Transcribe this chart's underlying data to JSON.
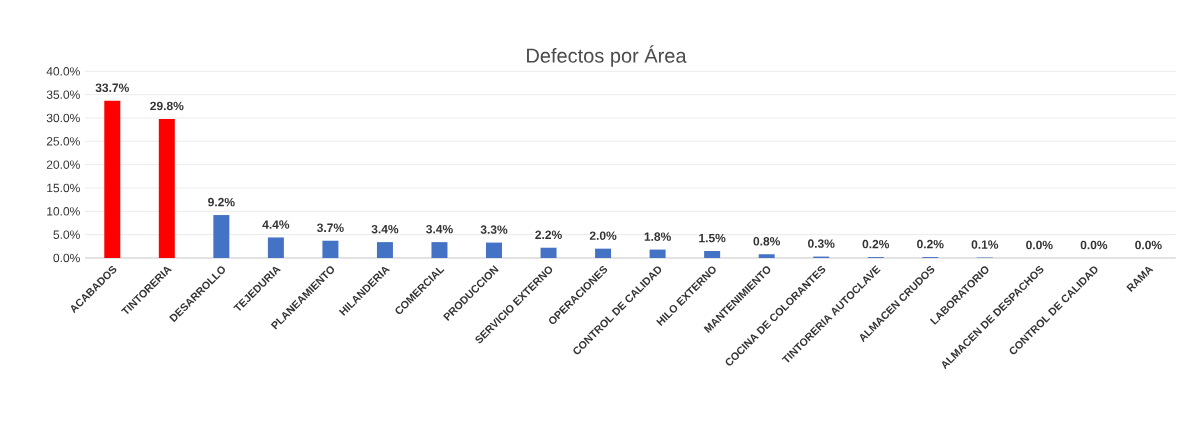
{
  "chart_data": {
    "type": "bar",
    "title": "Defectos por Área",
    "categories": [
      "ACABADOS",
      "TINTORERIA",
      "DESARROLLO",
      "TEJEDURIA",
      "PLANEAMIENTO",
      "HILANDERIA",
      "COMERCIAL",
      "PRODUCCION",
      "SERVICIO EXTERNO",
      "OPERACIONES",
      "CONTROL DE CALIDAD",
      "HILO EXTERNO",
      "MANTENIMIENTO",
      "COCINA DE COLORANTES",
      "TINTORERIA AUTOCLAVE",
      "ALMACEN CRUDOS",
      "LABORATORIO",
      "ALMACEN DE DESPACHOS",
      "CONTROL DE CALIDAD",
      "RAMA"
    ],
    "values": [
      33.7,
      29.8,
      9.2,
      4.4,
      3.7,
      3.4,
      3.4,
      3.3,
      2.2,
      2.0,
      1.8,
      1.5,
      0.8,
      0.3,
      0.2,
      0.2,
      0.1,
      0.0,
      0.0,
      0.0
    ],
    "value_labels": [
      "33.7%",
      "29.8%",
      "9.2%",
      "4.4%",
      "3.7%",
      "3.4%",
      "3.4%",
      "3.3%",
      "2.2%",
      "2.0%",
      "1.8%",
      "1.5%",
      "0.8%",
      "0.3%",
      "0.2%",
      "0.2%",
      "0.1%",
      "0.0%",
      "0.0%",
      "0.0%"
    ],
    "colors": [
      "#ff0000",
      "#ff0000",
      "#4472c4",
      "#4472c4",
      "#4472c4",
      "#4472c4",
      "#4472c4",
      "#4472c4",
      "#4472c4",
      "#4472c4",
      "#4472c4",
      "#4472c4",
      "#4472c4",
      "#4472c4",
      "#4472c4",
      "#4472c4",
      "#4472c4",
      "#4472c4",
      "#4472c4",
      "#4472c4"
    ],
    "ylim": [
      0,
      40
    ],
    "yticks": [
      {
        "value": 0,
        "label": "0.0%"
      },
      {
        "value": 5,
        "label": "5.0%"
      },
      {
        "value": 10,
        "label": "10.0%"
      },
      {
        "value": 15,
        "label": "15.0%"
      },
      {
        "value": 20,
        "label": "20.0%"
      },
      {
        "value": 25,
        "label": "25.0%"
      },
      {
        "value": 30,
        "label": "30.0%"
      },
      {
        "value": 35,
        "label": "35.0%"
      },
      {
        "value": 40,
        "label": "40.0%"
      }
    ],
    "grid": "y"
  }
}
